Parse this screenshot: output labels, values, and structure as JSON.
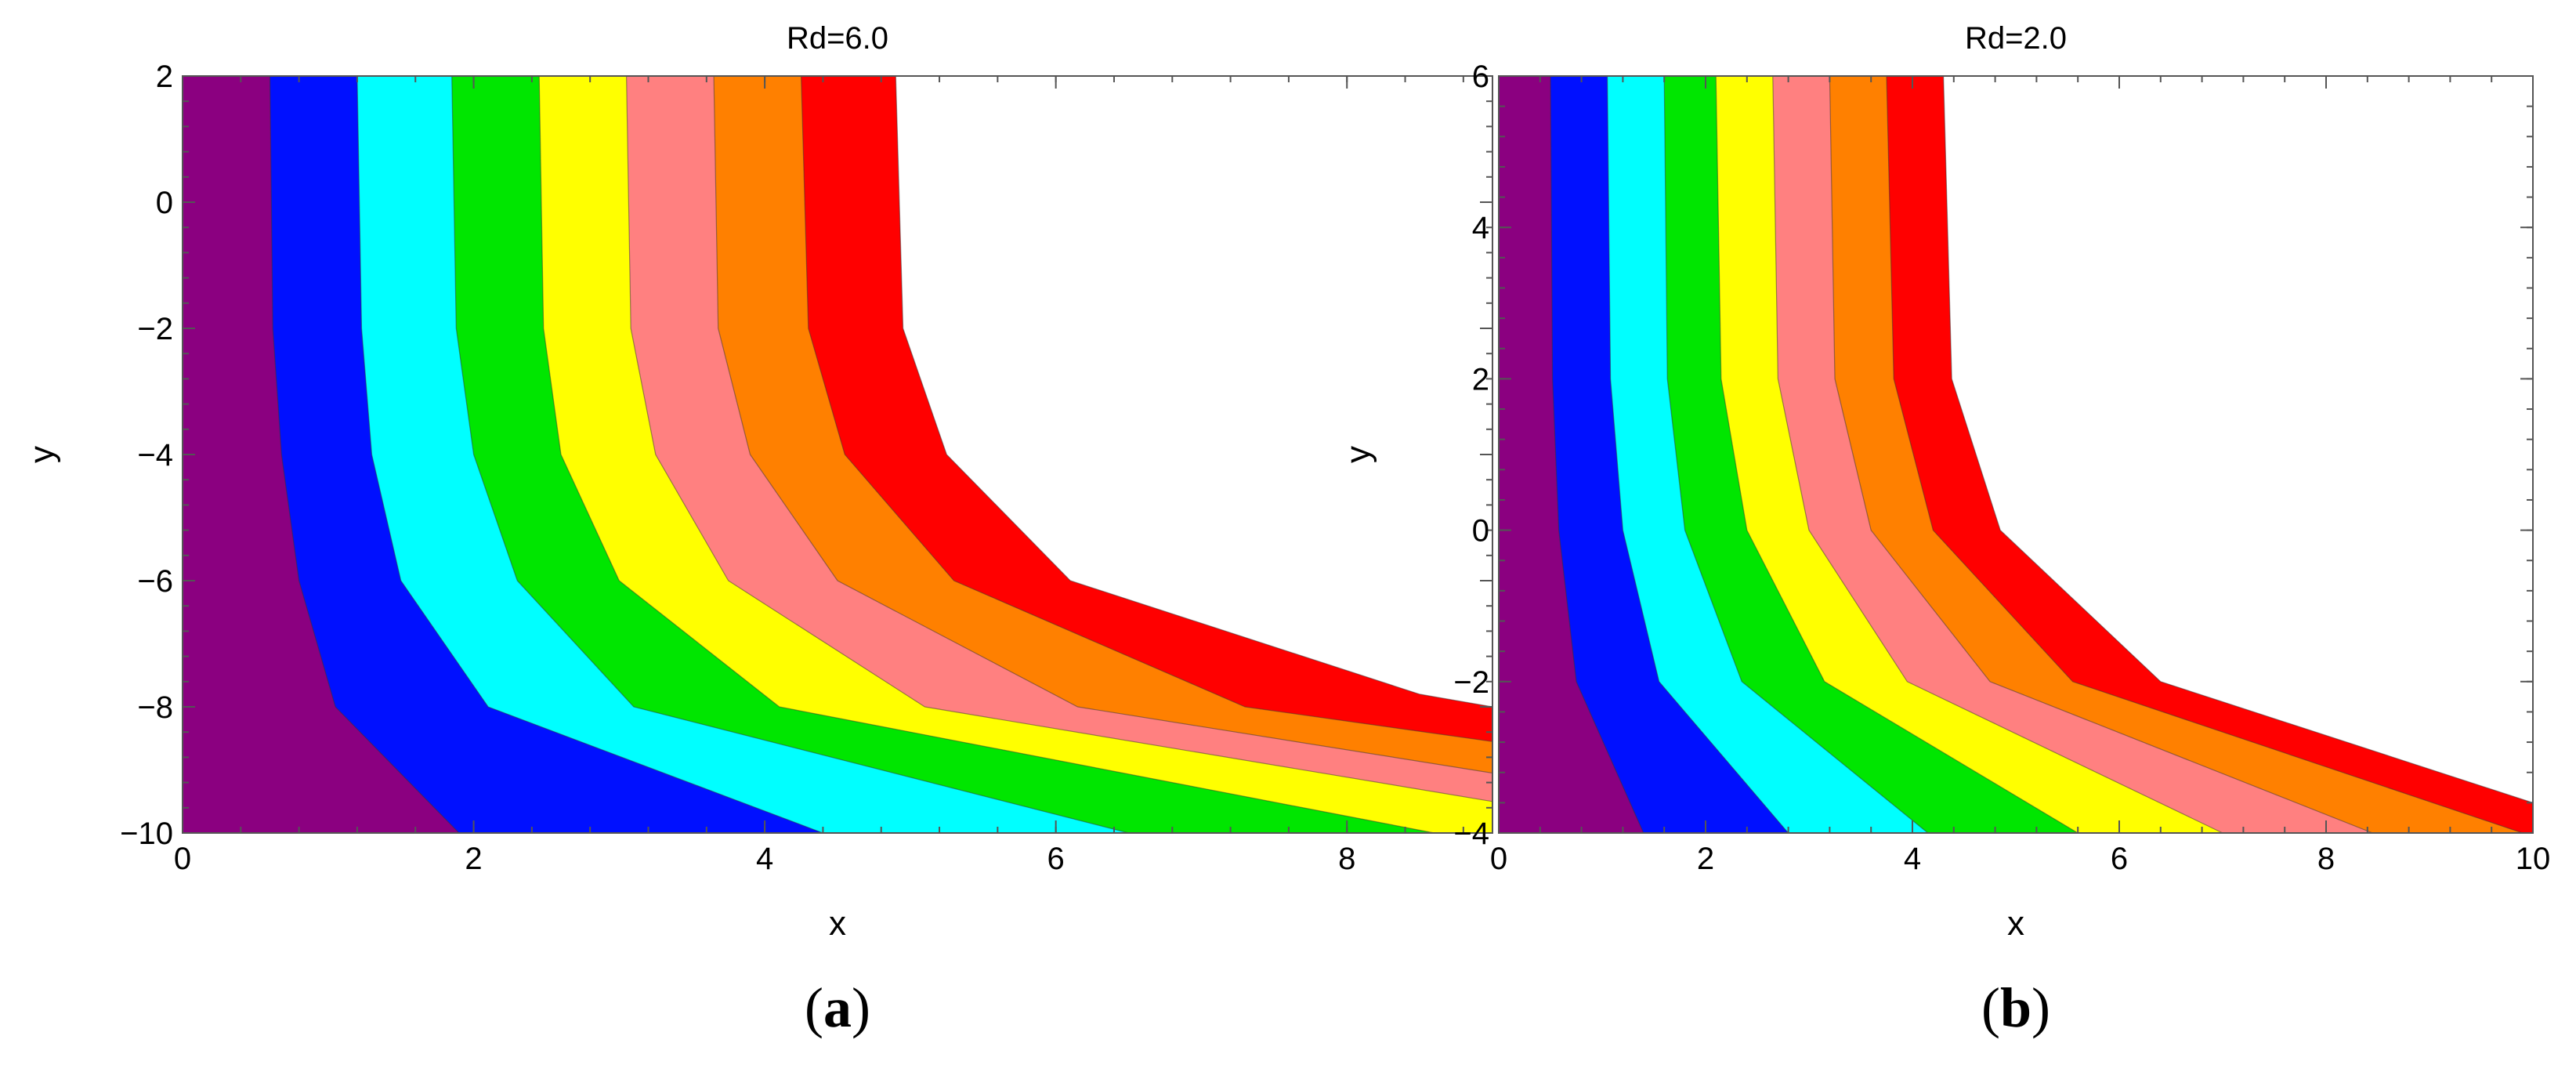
{
  "chart_data": [
    {
      "type": "contour",
      "title": "Rd=6.0",
      "xlabel": "x",
      "ylabel": "y",
      "xlim": [
        0,
        9
      ],
      "ylim": [
        -10,
        2
      ],
      "xticks": [
        0,
        2,
        4,
        6,
        8
      ],
      "yticks": [
        -10,
        -8,
        -6,
        -4,
        -2,
        0,
        2
      ],
      "grid": false,
      "caption_letter": "a",
      "colors": [
        "#8b0080",
        "#0010ff",
        "#00ffff",
        "#00e600",
        "#ffff00",
        "#ff8080",
        "#ff8000",
        "#ff0000"
      ],
      "contour_levels": [
        {
          "points": [
            [
              0.6,
              2
            ],
            [
              0.62,
              -2
            ],
            [
              0.68,
              -4
            ],
            [
              0.8,
              -6
            ],
            [
              1.05,
              -8
            ],
            [
              1.9,
              -10
            ]
          ]
        },
        {
          "points": [
            [
              1.2,
              2
            ],
            [
              1.23,
              -2
            ],
            [
              1.3,
              -4
            ],
            [
              1.5,
              -6
            ],
            [
              2.1,
              -8
            ],
            [
              4.4,
              -10
            ]
          ]
        },
        {
          "points": [
            [
              1.85,
              2
            ],
            [
              1.88,
              -2
            ],
            [
              2.0,
              -4
            ],
            [
              2.3,
              -6
            ],
            [
              3.1,
              -8
            ],
            [
              6.5,
              -10
            ]
          ]
        },
        {
          "points": [
            [
              2.45,
              2
            ],
            [
              2.48,
              -2
            ],
            [
              2.6,
              -4
            ],
            [
              3.0,
              -6
            ],
            [
              4.1,
              -8
            ],
            [
              8.6,
              -10
            ]
          ]
        },
        {
          "points": [
            [
              3.05,
              2
            ],
            [
              3.08,
              -2
            ],
            [
              3.25,
              -4
            ],
            [
              3.75,
              -6
            ],
            [
              5.1,
              -8
            ],
            [
              9.0,
              -9.5
            ]
          ]
        },
        {
          "points": [
            [
              3.65,
              2
            ],
            [
              3.68,
              -2
            ],
            [
              3.9,
              -4
            ],
            [
              4.5,
              -6
            ],
            [
              6.15,
              -8
            ],
            [
              9.0,
              -9.05
            ]
          ]
        },
        {
          "points": [
            [
              4.25,
              2
            ],
            [
              4.3,
              -2
            ],
            [
              4.55,
              -4
            ],
            [
              5.3,
              -6
            ],
            [
              7.3,
              -8
            ],
            [
              9.0,
              -8.55
            ]
          ]
        },
        {
          "points": [
            [
              4.9,
              2
            ],
            [
              4.95,
              -2
            ],
            [
              5.25,
              -4
            ],
            [
              6.1,
              -6
            ],
            [
              8.5,
              -7.8
            ],
            [
              9.0,
              -8.0
            ]
          ]
        }
      ]
    },
    {
      "type": "contour",
      "title": "Rd=2.0",
      "xlabel": "x",
      "ylabel": "y",
      "xlim": [
        0,
        10
      ],
      "ylim": [
        -4,
        6
      ],
      "xticks": [
        0,
        2,
        4,
        6,
        8,
        10
      ],
      "yticks": [
        -4,
        -2,
        0,
        2,
        4,
        6
      ],
      "grid": false,
      "caption_letter": "b",
      "colors": [
        "#8b0080",
        "#0010ff",
        "#00ffff",
        "#00e600",
        "#ffff00",
        "#ff8080",
        "#ff8000",
        "#ff0000"
      ],
      "contour_levels": [
        {
          "points": [
            [
              0.5,
              6
            ],
            [
              0.52,
              2
            ],
            [
              0.58,
              0
            ],
            [
              0.75,
              -2
            ],
            [
              1.4,
              -4
            ]
          ]
        },
        {
          "points": [
            [
              1.05,
              6
            ],
            [
              1.08,
              2
            ],
            [
              1.2,
              0
            ],
            [
              1.55,
              -2
            ],
            [
              2.8,
              -4
            ]
          ]
        },
        {
          "points": [
            [
              1.6,
              6
            ],
            [
              1.63,
              2
            ],
            [
              1.8,
              0
            ],
            [
              2.35,
              -2
            ],
            [
              4.15,
              -4
            ]
          ]
        },
        {
          "points": [
            [
              2.1,
              6
            ],
            [
              2.15,
              2
            ],
            [
              2.4,
              0
            ],
            [
              3.15,
              -2
            ],
            [
              5.6,
              -4
            ]
          ]
        },
        {
          "points": [
            [
              2.65,
              6
            ],
            [
              2.7,
              2
            ],
            [
              3.0,
              0
            ],
            [
              3.95,
              -2
            ],
            [
              7.0,
              -4
            ]
          ]
        },
        {
          "points": [
            [
              3.2,
              6
            ],
            [
              3.25,
              2
            ],
            [
              3.6,
              0
            ],
            [
              4.75,
              -2
            ],
            [
              8.45,
              -4
            ]
          ]
        },
        {
          "points": [
            [
              3.75,
              6
            ],
            [
              3.82,
              2
            ],
            [
              4.2,
              0
            ],
            [
              5.55,
              -2
            ],
            [
              9.9,
              -4
            ]
          ]
        },
        {
          "points": [
            [
              4.3,
              6
            ],
            [
              4.38,
              2
            ],
            [
              4.85,
              0
            ],
            [
              6.4,
              -2
            ],
            [
              10.0,
              -3.6
            ]
          ]
        }
      ]
    }
  ]
}
